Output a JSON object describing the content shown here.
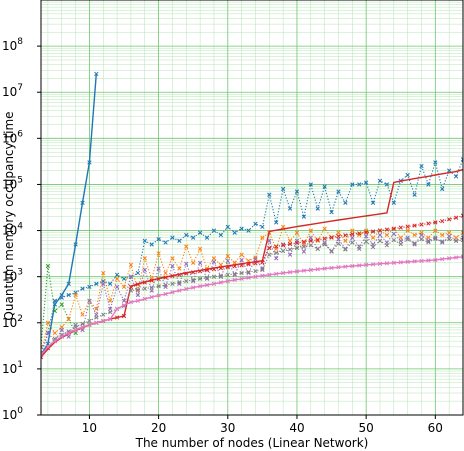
{
  "chart_data": {
    "type": "line",
    "title": "",
    "xlabel": "The number of nodes (Linear Network)",
    "ylabel": "Quantum memory occupancy time",
    "xlim": [
      3,
      64
    ],
    "ylim": [
      1,
      1000000000
    ],
    "yscale": "log",
    "grid": true,
    "x_ticks": [
      {
        "value": 10,
        "label": "10"
      },
      {
        "value": 20,
        "label": "20"
      },
      {
        "value": 30,
        "label": "30"
      },
      {
        "value": 40,
        "label": "40"
      },
      {
        "value": 50,
        "label": "50"
      },
      {
        "value": 60,
        "label": "60"
      }
    ],
    "y_ticks": [
      {
        "value": 1,
        "base": "10",
        "exp": "0"
      },
      {
        "value": 10,
        "base": "10",
        "exp": "1"
      },
      {
        "value": 100,
        "base": "10",
        "exp": "2"
      },
      {
        "value": 1000,
        "base": "10",
        "exp": "3"
      },
      {
        "value": 10000,
        "base": "10",
        "exp": "4"
      },
      {
        "value": 100000,
        "base": "10",
        "exp": "5"
      },
      {
        "value": 1000000,
        "base": "10",
        "exp": "6"
      },
      {
        "value": 10000000,
        "base": "10",
        "exp": "7"
      },
      {
        "value": 100000000,
        "base": "10",
        "exp": "8"
      }
    ],
    "series": [
      {
        "color": "#1f77b4",
        "style": "solid",
        "marker": "x",
        "x": [
          3,
          4,
          5,
          6,
          7,
          8,
          9,
          10,
          11
        ],
        "y": [
          20,
          35,
          250,
          400,
          700,
          5000,
          40000,
          300000,
          25000000
        ]
      },
      {
        "color": "#2ca02c",
        "style": "dotted",
        "marker": "x",
        "x": [
          3,
          4,
          5,
          6,
          7,
          8
        ],
        "y": [
          30,
          1700,
          180,
          250,
          120,
          60
        ]
      },
      {
        "color": "#1f77b4",
        "style": "dotted",
        "marker": "x",
        "x": [
          3,
          4,
          5,
          6,
          7,
          8,
          9,
          10,
          11,
          12,
          13,
          14,
          15,
          16,
          17,
          18,
          19,
          20,
          21,
          22,
          23,
          24,
          25,
          26,
          27,
          28,
          29,
          30,
          31,
          32,
          33,
          34,
          35,
          36,
          37,
          38,
          39,
          40,
          41,
          42,
          43,
          44,
          45,
          46,
          47,
          48,
          49,
          50,
          51,
          52,
          53,
          54,
          55,
          56,
          57,
          58,
          59,
          60,
          61,
          62,
          63,
          64
        ],
        "y": [
          20,
          60,
          300,
          350,
          400,
          450,
          550,
          600,
          700,
          800,
          700,
          1100,
          900,
          1000,
          1200,
          6000,
          5000,
          6500,
          5500,
          7000,
          6000,
          8000,
          7000,
          9000,
          7000,
          10000,
          8000,
          12000,
          9000,
          11000,
          10000,
          14000,
          12000,
          60000,
          15000,
          80000,
          30000,
          70000,
          20000,
          100000,
          30000,
          90000,
          25000,
          70000,
          40000,
          100000,
          100000,
          110000,
          40000,
          120000,
          100000,
          40000,
          120000,
          160000,
          60000,
          250000,
          100000,
          300000,
          80000,
          200000,
          150000,
          350000
        ]
      },
      {
        "color": "#ff7f0e",
        "style": "dotted",
        "marker": "x",
        "x": [
          3,
          4,
          5,
          6,
          7,
          8,
          9,
          10,
          11,
          12,
          13,
          14,
          15,
          16,
          17,
          18,
          19,
          20,
          21,
          22,
          23,
          24,
          25,
          26,
          27,
          28,
          29,
          30,
          31,
          32,
          33,
          34,
          35,
          36,
          37,
          38,
          39,
          40,
          41,
          42,
          43,
          44,
          45,
          46,
          47,
          48,
          49,
          50,
          51,
          52,
          53,
          54,
          55,
          56,
          57,
          58,
          59,
          60,
          61,
          62,
          63,
          64
        ],
        "y": [
          20,
          100,
          60,
          80,
          120,
          400,
          150,
          300,
          200,
          1200,
          300,
          900,
          600,
          1800,
          500,
          2500,
          900,
          3200,
          1200,
          2500,
          1500,
          4500,
          2000,
          4000,
          1500,
          2500,
          1800,
          2800,
          2000,
          3000,
          2200,
          2600,
          7000,
          9000,
          4000,
          12000,
          6000,
          9000,
          5000,
          10000,
          6000,
          11000,
          7000,
          9000,
          6000,
          10000,
          8000,
          10000,
          7000,
          10000,
          8000,
          11000,
          7000,
          10000,
          8000,
          9000,
          7000,
          10000,
          8000,
          9000,
          7000,
          9000
        ]
      },
      {
        "color": "#9467bd",
        "style": "dotted",
        "marker": "x",
        "x": [
          3,
          4,
          5,
          6,
          7,
          8,
          9,
          10,
          11,
          12,
          13,
          14,
          15,
          16,
          17,
          18,
          19,
          20,
          21,
          22,
          23,
          24,
          25,
          26,
          27,
          28,
          29,
          30,
          31,
          32,
          33,
          34,
          35,
          36,
          37,
          38,
          39,
          40,
          41,
          42,
          43,
          44,
          45,
          46,
          47,
          48,
          49,
          50,
          51,
          52,
          53,
          54,
          55,
          56,
          57,
          58,
          59,
          60,
          61,
          62,
          63,
          64
        ],
        "y": [
          20,
          60,
          40,
          70,
          50,
          90,
          70,
          300,
          150,
          700,
          200,
          600,
          300,
          1000,
          400,
          1400,
          500,
          1500,
          600,
          1700,
          700,
          1900,
          800,
          2000,
          900,
          2100,
          1000,
          2200,
          1100,
          2300,
          1200,
          2400,
          1500,
          6000,
          2500,
          5000,
          3000,
          6000,
          3500,
          7000,
          4000,
          5500,
          3500,
          6500,
          4000,
          7000,
          4500,
          7500,
          5000,
          8000,
          5500,
          8500,
          6000,
          7000,
          5000,
          8000,
          6000,
          7000,
          5500,
          7500,
          6000,
          7000
        ]
      },
      {
        "color": "#d62728",
        "style": "solid",
        "marker": "",
        "x": [
          3,
          4,
          5,
          6,
          7,
          8,
          9,
          10,
          11,
          12,
          13,
          14,
          15,
          16,
          17,
          18,
          19,
          20,
          21,
          22,
          23,
          24,
          25,
          26,
          27,
          28,
          29,
          30,
          31,
          32,
          33,
          34,
          35,
          36,
          37,
          38,
          39,
          40,
          41,
          42,
          43,
          44,
          45,
          46,
          47,
          48,
          49,
          50,
          51,
          52,
          53,
          54,
          55,
          56,
          57,
          58,
          59,
          60,
          61,
          62,
          63,
          64
        ],
        "y": [
          18,
          27,
          38,
          48,
          58,
          68,
          78,
          90,
          100,
          110,
          120,
          130,
          140,
          620,
          700,
          770,
          840,
          910,
          980,
          1050,
          1130,
          1210,
          1290,
          1370,
          1450,
          1540,
          1630,
          1720,
          1810,
          1910,
          2010,
          2110,
          2220,
          9600,
          10200,
          10800,
          11500,
          12200,
          12900,
          13600,
          14400,
          15200,
          16000,
          16900,
          17800,
          18800,
          19800,
          20800,
          21900,
          23000,
          24200,
          110000,
          118000,
          126000,
          134000,
          142000,
          150000,
          160000,
          170000,
          180000,
          190000,
          210000
        ]
      },
      {
        "color": "#d62728",
        "style": "dotted",
        "marker": "x",
        "x": [
          3,
          4,
          5,
          6,
          7,
          8,
          9,
          10,
          11,
          12,
          13,
          14,
          15,
          16,
          17,
          18,
          19,
          20,
          21,
          22,
          23,
          24,
          25,
          26,
          27,
          28,
          29,
          30,
          31,
          32,
          33,
          34,
          35,
          36,
          37,
          38,
          39,
          40,
          41,
          42,
          43,
          44,
          45,
          46,
          47,
          48,
          49,
          50,
          51,
          52,
          53,
          54,
          55,
          56,
          57,
          58,
          59,
          60,
          61,
          62,
          63,
          64
        ],
        "y": [
          18,
          28,
          40,
          50,
          60,
          70,
          80,
          90,
          100,
          110,
          120,
          130,
          140,
          600,
          680,
          750,
          820,
          890,
          960,
          1030,
          1100,
          1170,
          1240,
          1310,
          1380,
          1450,
          1520,
          1600,
          1680,
          1760,
          1850,
          1940,
          2030,
          4200,
          4500,
          4800,
          5100,
          5400,
          5700,
          6000,
          6300,
          6700,
          7100,
          7500,
          7900,
          8300,
          8700,
          9100,
          9500,
          10000,
          10500,
          11000,
          11600,
          12200,
          12800,
          13500,
          14200,
          15000,
          16000,
          17500,
          19000,
          21000
        ]
      },
      {
        "color": "#7f7f7f",
        "style": "dotted",
        "marker": "x",
        "x": [
          3,
          4,
          5,
          6,
          7,
          8,
          9,
          10,
          11,
          12,
          13,
          14,
          15,
          16,
          17,
          18,
          19,
          20,
          21,
          22,
          23,
          24,
          25,
          26,
          27,
          28,
          29,
          30,
          31,
          32,
          33,
          34,
          35,
          36,
          37,
          38,
          39,
          40,
          41,
          42,
          43,
          44,
          45,
          46,
          47,
          48,
          49,
          50,
          51,
          52,
          53,
          54,
          55,
          56,
          57,
          58,
          59,
          60,
          61,
          62,
          63,
          64
        ],
        "y": [
          20,
          30,
          45,
          55,
          65,
          80,
          95,
          110,
          130,
          150,
          170,
          200,
          230,
          500,
          520,
          550,
          580,
          620,
          660,
          700,
          750,
          800,
          850,
          900,
          950,
          1000,
          1050,
          1100,
          1150,
          1200,
          1260,
          1320,
          1400,
          3000,
          3300,
          3600,
          3900,
          4200,
          4500,
          4800,
          4000,
          5000,
          3600,
          5200,
          3900,
          5500,
          4000,
          5800,
          4400,
          6000,
          4800,
          6200,
          5100,
          6400,
          5300,
          6500,
          5600,
          6600,
          5800,
          6500,
          6000,
          6200
        ]
      },
      {
        "color": "#e377c2",
        "style": "solid",
        "marker": "x",
        "x": [
          3,
          4,
          5,
          6,
          7,
          8,
          9,
          10,
          11,
          12,
          13,
          14,
          15,
          16,
          17,
          18,
          19,
          20,
          21,
          22,
          23,
          24,
          25,
          26,
          27,
          28,
          29,
          30,
          31,
          32,
          33,
          34,
          35,
          36,
          37,
          38,
          39,
          40,
          41,
          42,
          43,
          44,
          45,
          46,
          47,
          48,
          49,
          50,
          51,
          52,
          53,
          54,
          55,
          56,
          57,
          58,
          59,
          60,
          61,
          62,
          63,
          64
        ],
        "y": [
          20,
          30,
          40,
          50,
          60,
          70,
          80,
          90,
          100,
          110,
          120,
          200,
          240,
          280,
          300,
          330,
          360,
          390,
          420,
          460,
          500,
          540,
          580,
          620,
          660,
          700,
          750,
          800,
          850,
          900,
          950,
          1000,
          1050,
          1100,
          1150,
          1200,
          1250,
          1300,
          1350,
          1400,
          1450,
          1500,
          1550,
          1600,
          1650,
          1700,
          1750,
          1800,
          1850,
          1900,
          1950,
          2000,
          2050,
          2100,
          2150,
          2200,
          2250,
          2300,
          2400,
          2500,
          2600,
          2700
        ]
      }
    ]
  }
}
